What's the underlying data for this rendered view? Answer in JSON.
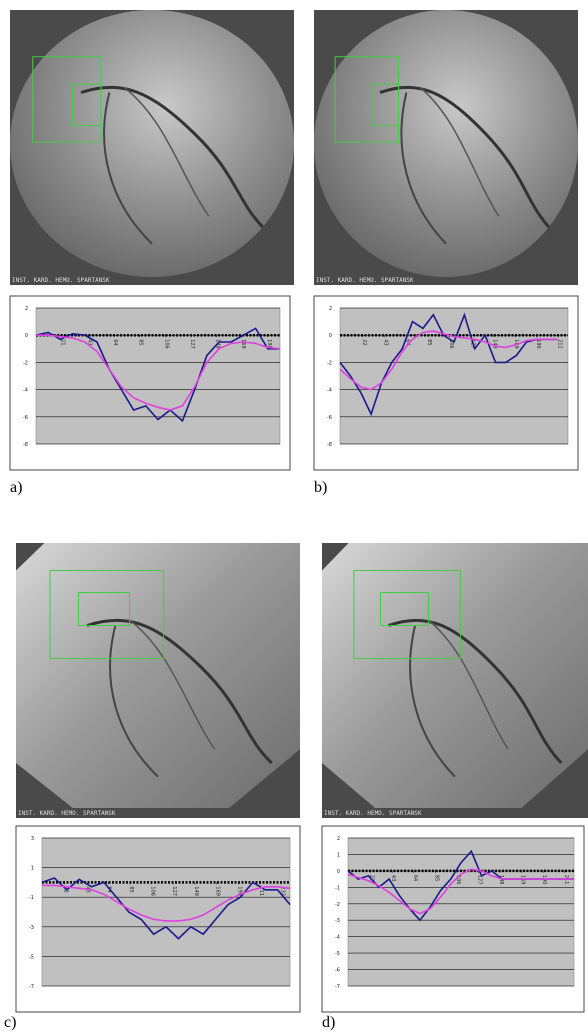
{
  "figure": {
    "panels": [
      {
        "label": "a)",
        "watermark": "INST. KARD. HEMO. SPARTANSK"
      },
      {
        "label": "b)",
        "watermark": "INST. KARD. HEMO. SPARTANSK"
      },
      {
        "label": "c)",
        "watermark": "INST. KARD. HEMO. SPARTANSK"
      },
      {
        "label": "d)",
        "watermark": "INST. KARD. HEMO. SPARTANSK"
      }
    ]
  },
  "chart_data": [
    {
      "type": "line",
      "ylim": [
        -8,
        2
      ],
      "yticks": [
        2,
        0,
        -2,
        -4,
        -6,
        -8
      ],
      "xlim": [
        0,
        200
      ],
      "xticks": [
        21,
        43,
        64,
        85,
        106,
        127,
        148,
        169,
        190
      ],
      "hline": 0,
      "grid": true,
      "series": [
        {
          "color": "#1a1a8c",
          "x": [
            0,
            10,
            20,
            30,
            40,
            50,
            60,
            70,
            80,
            90,
            100,
            110,
            120,
            130,
            140,
            150,
            160,
            170,
            180,
            190,
            200
          ],
          "values": [
            0,
            0.2,
            -0.3,
            0.1,
            0,
            -0.5,
            -2.5,
            -4,
            -5.5,
            -5.2,
            -6.2,
            -5.5,
            -6.3,
            -4,
            -1.5,
            -0.5,
            -0.5,
            0,
            0.5,
            -1,
            -1
          ]
        },
        {
          "color": "#e040e0",
          "x": [
            0,
            10,
            20,
            30,
            40,
            50,
            60,
            70,
            80,
            90,
            100,
            110,
            120,
            130,
            140,
            150,
            160,
            170,
            180,
            190,
            200
          ],
          "values": [
            0,
            0,
            -0.1,
            -0.2,
            -0.5,
            -1.2,
            -2.5,
            -3.8,
            -4.6,
            -5,
            -5.3,
            -5.5,
            -5.2,
            -3.8,
            -2,
            -1,
            -0.6,
            -0.5,
            -0.6,
            -0.9,
            -1
          ]
        }
      ]
    },
    {
      "type": "line",
      "ylim": [
        -8,
        2
      ],
      "yticks": [
        2,
        0,
        -2,
        -4,
        -6,
        -8
      ],
      "xlim": [
        0,
        220
      ],
      "xticks": [
        22,
        43,
        64,
        85,
        106,
        127,
        148,
        169,
        190,
        211
      ],
      "hline": 0,
      "grid": true,
      "series": [
        {
          "color": "#1a1a8c",
          "x": [
            0,
            10,
            20,
            30,
            40,
            50,
            60,
            70,
            80,
            90,
            100,
            110,
            120,
            130,
            140,
            150,
            160,
            170,
            180,
            190,
            200,
            210
          ],
          "values": [
            -2,
            -3,
            -4.2,
            -5.8,
            -3.5,
            -2,
            -1,
            1,
            0.5,
            1.5,
            0,
            -0.5,
            1.5,
            -1,
            0,
            -2,
            -2,
            -1.5,
            -0.5,
            -0.3,
            -0.3,
            -0.3
          ]
        },
        {
          "color": "#e040e0",
          "x": [
            0,
            10,
            20,
            30,
            40,
            50,
            60,
            70,
            80,
            90,
            100,
            110,
            120,
            130,
            140,
            150,
            160,
            170,
            180,
            190,
            200,
            210
          ],
          "values": [
            -2.5,
            -3.2,
            -3.8,
            -4,
            -3.5,
            -2.5,
            -1.2,
            -0.3,
            0.2,
            0.3,
            0.1,
            -0.1,
            -0.2,
            -0.3,
            -0.5,
            -0.8,
            -0.9,
            -0.7,
            -0.4,
            -0.3,
            -0.3,
            -0.3
          ]
        }
      ]
    },
    {
      "type": "line",
      "ylim": [
        -7,
        3
      ],
      "yticks": [
        3,
        1,
        -1,
        -3,
        -5,
        -7
      ],
      "xlim": [
        0,
        240
      ],
      "xticks": [
        22,
        43,
        64,
        85,
        106,
        127,
        148,
        169,
        190,
        211,
        232
      ],
      "hline": 0,
      "grid": true,
      "series": [
        {
          "color": "#1a1a8c",
          "x": [
            0,
            12,
            24,
            36,
            48,
            60,
            72,
            84,
            96,
            108,
            120,
            132,
            144,
            156,
            168,
            180,
            192,
            204,
            216,
            228,
            240
          ],
          "values": [
            0,
            0.3,
            -0.5,
            0.2,
            -0.3,
            0,
            -1,
            -2,
            -2.5,
            -3.5,
            -3,
            -3.8,
            -3,
            -3.5,
            -2.5,
            -1.5,
            -1,
            0,
            -0.5,
            -0.5,
            -1.5
          ]
        },
        {
          "color": "#e040e0",
          "x": [
            0,
            12,
            24,
            36,
            48,
            60,
            72,
            84,
            96,
            108,
            120,
            132,
            144,
            156,
            168,
            180,
            192,
            204,
            216,
            228,
            240
          ],
          "values": [
            -0.2,
            -0.2,
            -0.3,
            -0.4,
            -0.5,
            -0.8,
            -1.3,
            -1.8,
            -2.2,
            -2.5,
            -2.6,
            -2.6,
            -2.5,
            -2.2,
            -1.7,
            -1.2,
            -0.8,
            -0.5,
            -0.3,
            -0.3,
            -0.4
          ]
        }
      ]
    },
    {
      "type": "line",
      "ylim": [
        -7,
        2
      ],
      "yticks": [
        2,
        1,
        0,
        -1,
        -2,
        -3,
        -4,
        -5,
        -6,
        -7
      ],
      "xlim": [
        0,
        220
      ],
      "xticks": [
        22,
        43,
        64,
        85,
        106,
        127,
        148,
        169,
        190,
        211
      ],
      "hline": 0,
      "grid": true,
      "series": [
        {
          "color": "#1a1a8c",
          "x": [
            0,
            10,
            20,
            30,
            40,
            50,
            60,
            70,
            80,
            90,
            100,
            110,
            120,
            130,
            140,
            150,
            160,
            170,
            180,
            190,
            200,
            210,
            220
          ],
          "values": [
            0,
            -0.5,
            -0.3,
            -1,
            -0.5,
            -1.5,
            -2.3,
            -3,
            -2.2,
            -1.2,
            -0.5,
            0.5,
            1.2,
            -0.3,
            0,
            -0.5,
            -0.5,
            -0.5,
            -0.5,
            -0.5,
            -0.5,
            -0.5,
            -0.5
          ]
        },
        {
          "color": "#e040e0",
          "x": [
            0,
            10,
            20,
            30,
            40,
            50,
            60,
            70,
            80,
            90,
            100,
            110,
            120,
            130,
            140,
            150,
            160,
            170,
            180,
            190,
            200,
            210,
            220
          ],
          "values": [
            -0.2,
            -0.4,
            -0.6,
            -0.9,
            -1.3,
            -1.8,
            -2.3,
            -2.6,
            -2.3,
            -1.6,
            -0.8,
            -0.2,
            0.1,
            0,
            -0.3,
            -0.5,
            -0.5,
            -0.5,
            -0.5,
            -0.5,
            -0.5,
            -0.5,
            -0.5
          ]
        }
      ]
    }
  ]
}
